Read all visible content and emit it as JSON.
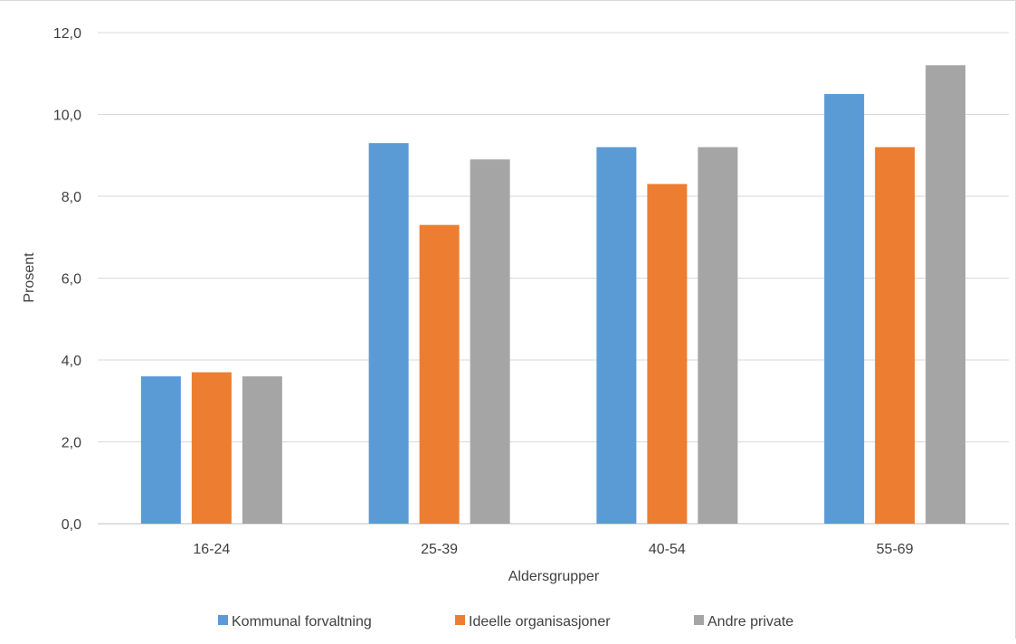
{
  "chart_data": {
    "type": "bar",
    "title": "",
    "xlabel": "Aldersgrupper",
    "ylabel": "Prosent",
    "categories": [
      "16-24",
      "25-39",
      "40-54",
      "55-69"
    ],
    "series": [
      {
        "name": "Kommunal forvaltning",
        "color": "#5b9bd5",
        "values": [
          3.6,
          9.3,
          9.2,
          10.5
        ]
      },
      {
        "name": "Ideelle organisasjoner",
        "color": "#ed7d31",
        "values": [
          3.7,
          7.3,
          8.3,
          9.2
        ]
      },
      {
        "name": "Andre private",
        "color": "#a5a5a5",
        "values": [
          3.6,
          8.9,
          9.2,
          11.2
        ]
      }
    ],
    "ylim": [
      0,
      12
    ],
    "yticks": [
      "0,0",
      "2,0",
      "4,0",
      "6,0",
      "8,0",
      "10,0",
      "12,0"
    ],
    "grid": true,
    "legend_position": "bottom"
  }
}
